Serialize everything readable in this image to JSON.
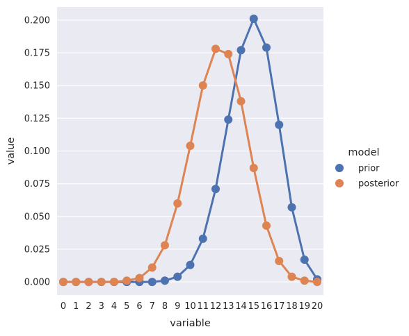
{
  "chart_data": {
    "type": "line",
    "xlabel": "variable",
    "ylabel": "value",
    "categories": [
      "0",
      "1",
      "2",
      "3",
      "4",
      "5",
      "6",
      "7",
      "8",
      "9",
      "10",
      "11",
      "12",
      "13",
      "14",
      "15",
      "16",
      "17",
      "18",
      "19",
      "20"
    ],
    "ylim": [
      -0.01,
      0.21
    ],
    "yticks": [
      0.0,
      0.025,
      0.05,
      0.075,
      0.1,
      0.125,
      0.15,
      0.175,
      0.2
    ],
    "ytick_labels": [
      "0.000",
      "0.025",
      "0.050",
      "0.075",
      "0.100",
      "0.125",
      "0.150",
      "0.175",
      "0.200"
    ],
    "grid": true,
    "legend": {
      "title": "model",
      "placement": "right"
    },
    "series": [
      {
        "name": "prior",
        "color": "#4c72b0",
        "values": [
          0.0,
          0.0,
          0.0,
          0.0,
          0.0,
          0.0,
          0.0,
          0.0,
          0.001,
          0.004,
          0.013,
          0.033,
          0.071,
          0.124,
          0.177,
          0.201,
          0.179,
          0.12,
          0.057,
          0.017,
          0.002
        ]
      },
      {
        "name": "posterior",
        "color": "#dd8452",
        "values": [
          0.0,
          0.0,
          0.0,
          0.0,
          0.0,
          0.001,
          0.003,
          0.011,
          0.028,
          0.06,
          0.104,
          0.15,
          0.178,
          0.174,
          0.138,
          0.087,
          0.043,
          0.016,
          0.004,
          0.001,
          0.0
        ]
      }
    ]
  },
  "colors": {
    "plot_background": "#eaeaf2",
    "grid": "#ffffff"
  }
}
